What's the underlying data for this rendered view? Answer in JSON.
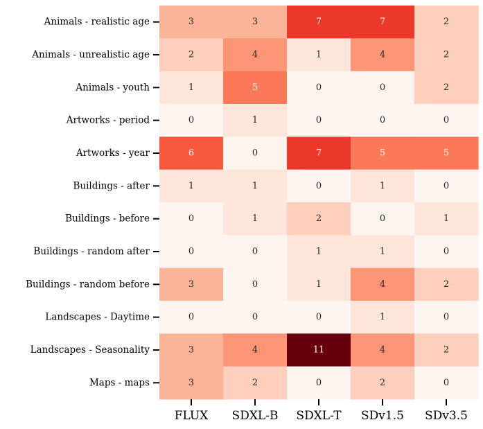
{
  "chart_data": {
    "type": "heatmap",
    "title": "",
    "xlabel": "",
    "ylabel": "",
    "colormap": "Reds",
    "vmin": 0,
    "vmax": 11,
    "columns": [
      "FLUX",
      "SDXL-B",
      "SDXL-T",
      "SDv1.5",
      "SDv3.5"
    ],
    "rows": [
      "Animals - realistic age",
      "Animals - unrealistic age",
      "Animals - youth",
      "Artworks - period",
      "Artworks - year",
      "Buildings - after",
      "Buildings - before",
      "Buildings - random after",
      "Buildings - random before",
      "Landscapes - Daytime",
      "Landscapes - Seasonality",
      "Maps - maps"
    ],
    "values": [
      [
        3,
        3,
        7,
        7,
        2
      ],
      [
        2,
        4,
        1,
        4,
        2
      ],
      [
        1,
        5,
        0,
        0,
        2
      ],
      [
        0,
        1,
        0,
        0,
        0
      ],
      [
        6,
        0,
        7,
        5,
        5
      ],
      [
        1,
        1,
        0,
        1,
        0
      ],
      [
        0,
        1,
        2,
        0,
        1
      ],
      [
        0,
        0,
        1,
        1,
        0
      ],
      [
        3,
        0,
        1,
        4,
        2
      ],
      [
        0,
        0,
        0,
        1,
        0
      ],
      [
        3,
        4,
        11,
        4,
        2
      ],
      [
        3,
        2,
        0,
        2,
        0
      ]
    ],
    "annotate": true,
    "colorbar": false
  }
}
